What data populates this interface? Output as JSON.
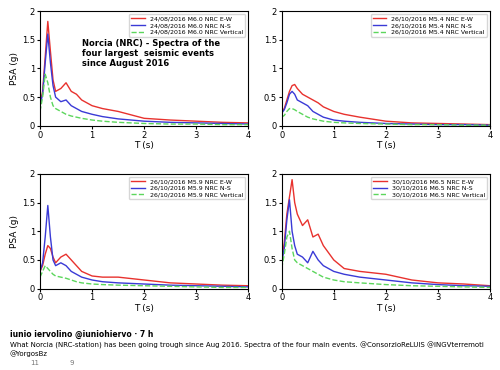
{
  "chart_data": [
    {
      "type": "line",
      "annotation": "Norcia (NRC) - Spectra of the\nfour largest  seismic events\nsince August 2016",
      "xlabel": "T (s)",
      "ylabel": "PSA (g)",
      "xlim": [
        0,
        4
      ],
      "xticks": [
        0,
        1,
        2,
        3,
        4
      ],
      "ylim": [
        0,
        2
      ],
      "yticks": [
        0,
        0.5,
        1,
        1.5,
        2
      ],
      "legend": "upper right",
      "x": [
        0,
        0.05,
        0.1,
        0.15,
        0.2,
        0.25,
        0.3,
        0.4,
        0.5,
        0.6,
        0.7,
        0.8,
        1.0,
        1.2,
        1.5,
        2.0,
        2.5,
        3.0,
        3.5,
        4.0
      ],
      "series": [
        {
          "name": "24/08/2016 M6.0 NRC E-W",
          "color": "#e8322e",
          "line_style": "solid",
          "values": [
            0.37,
            0.6,
            1.2,
            1.82,
            1.3,
            0.8,
            0.6,
            0.65,
            0.75,
            0.6,
            0.55,
            0.45,
            0.35,
            0.3,
            0.25,
            0.13,
            0.1,
            0.08,
            0.06,
            0.05
          ]
        },
        {
          "name": "24/08/2016 M6.0 NRC N-S",
          "color": "#3a3ad6",
          "line_style": "solid",
          "values": [
            0.35,
            0.55,
            1.1,
            1.6,
            1.1,
            0.7,
            0.5,
            0.42,
            0.45,
            0.35,
            0.3,
            0.25,
            0.2,
            0.16,
            0.12,
            0.08,
            0.06,
            0.05,
            0.04,
            0.03
          ]
        },
        {
          "name": "24/08/2016 M6.0 NRC Vertical",
          "color": "#5cd65c",
          "line_style": "dashed",
          "values": [
            0.25,
            0.5,
            0.9,
            0.75,
            0.5,
            0.35,
            0.3,
            0.25,
            0.2,
            0.17,
            0.15,
            0.13,
            0.1,
            0.08,
            0.06,
            0.04,
            0.03,
            0.03,
            0.02,
            0.02
          ]
        }
      ]
    },
    {
      "type": "line",
      "xlabel": "T (s)",
      "xlim": [
        0,
        4
      ],
      "xticks": [
        0,
        1,
        2,
        3,
        4
      ],
      "ylim": [
        0,
        2
      ],
      "yticks": [
        0,
        0.5,
        1,
        1.5,
        2
      ],
      "legend": "upper right",
      "x": [
        0,
        0.05,
        0.1,
        0.15,
        0.2,
        0.25,
        0.3,
        0.4,
        0.5,
        0.6,
        0.7,
        0.8,
        1.0,
        1.2,
        1.5,
        2.0,
        2.5,
        3.0,
        3.5,
        4.0
      ],
      "series": [
        {
          "name": "26/10/2016 M5.4 NRC E-W",
          "color": "#e8322e",
          "line_style": "solid",
          "values": [
            0.25,
            0.3,
            0.45,
            0.6,
            0.7,
            0.72,
            0.65,
            0.55,
            0.5,
            0.45,
            0.4,
            0.33,
            0.25,
            0.2,
            0.15,
            0.08,
            0.05,
            0.04,
            0.03,
            0.02
          ]
        },
        {
          "name": "26/10/2016 M5.4 NRC N-S",
          "color": "#3a3ad6",
          "line_style": "solid",
          "values": [
            0.22,
            0.28,
            0.4,
            0.55,
            0.6,
            0.55,
            0.45,
            0.4,
            0.35,
            0.25,
            0.2,
            0.15,
            0.1,
            0.08,
            0.06,
            0.04,
            0.03,
            0.02,
            0.02,
            0.01
          ]
        },
        {
          "name": "26/10/2016 M5.4 NRC Vertical",
          "color": "#5cd65c",
          "line_style": "dashed",
          "values": [
            0.15,
            0.18,
            0.25,
            0.3,
            0.3,
            0.28,
            0.25,
            0.2,
            0.15,
            0.12,
            0.1,
            0.08,
            0.06,
            0.05,
            0.04,
            0.03,
            0.02,
            0.02,
            0.01,
            0.01
          ]
        }
      ]
    },
    {
      "type": "line",
      "xlabel": "T (s)",
      "ylabel": "PSA (g)",
      "xlim": [
        0,
        4
      ],
      "xticks": [
        0,
        1,
        2,
        3,
        4
      ],
      "ylim": [
        0,
        2
      ],
      "yticks": [
        0,
        0.5,
        1,
        1.5,
        2
      ],
      "legend": "upper right",
      "x": [
        0,
        0.05,
        0.1,
        0.15,
        0.2,
        0.25,
        0.3,
        0.4,
        0.5,
        0.6,
        0.7,
        0.8,
        1.0,
        1.2,
        1.5,
        2.0,
        2.5,
        3.0,
        3.5,
        4.0
      ],
      "series": [
        {
          "name": "26/10/2016 M5.9 NRC E-W",
          "color": "#e8322e",
          "line_style": "solid",
          "values": [
            0.3,
            0.4,
            0.6,
            0.75,
            0.7,
            0.55,
            0.45,
            0.55,
            0.6,
            0.5,
            0.4,
            0.3,
            0.22,
            0.2,
            0.2,
            0.15,
            0.1,
            0.08,
            0.06,
            0.05
          ]
        },
        {
          "name": "26/10/2016 M5.9 NRC N-S",
          "color": "#3a3ad6",
          "line_style": "solid",
          "values": [
            0.3,
            0.45,
            0.9,
            1.45,
            0.9,
            0.5,
            0.4,
            0.45,
            0.4,
            0.3,
            0.25,
            0.2,
            0.15,
            0.12,
            0.1,
            0.08,
            0.06,
            0.05,
            0.04,
            0.03
          ]
        },
        {
          "name": "26/10/2016 M5.9 NRC Vertical",
          "color": "#5cd65c",
          "line_style": "dashed",
          "values": [
            0.2,
            0.3,
            0.4,
            0.35,
            0.3,
            0.25,
            0.22,
            0.2,
            0.18,
            0.15,
            0.12,
            0.1,
            0.08,
            0.07,
            0.06,
            0.05,
            0.04,
            0.03,
            0.02,
            0.02
          ]
        }
      ]
    },
    {
      "type": "line",
      "xlabel": "T (s)",
      "xlim": [
        0,
        4
      ],
      "xticks": [
        0,
        1,
        2,
        3,
        4
      ],
      "ylim": [
        0,
        2
      ],
      "yticks": [
        0,
        0.5,
        1,
        1.5,
        2
      ],
      "legend": "upper right",
      "x": [
        0,
        0.05,
        0.1,
        0.15,
        0.2,
        0.25,
        0.3,
        0.4,
        0.5,
        0.6,
        0.7,
        0.8,
        1.0,
        1.2,
        1.5,
        2.0,
        2.5,
        3.0,
        3.5,
        4.0
      ],
      "series": [
        {
          "name": "30/10/2016 M6.5 NRC E-W",
          "color": "#e8322e",
          "line_style": "solid",
          "values": [
            0.5,
            0.8,
            1.3,
            1.6,
            1.9,
            1.5,
            1.3,
            1.1,
            1.2,
            0.9,
            0.95,
            0.75,
            0.5,
            0.35,
            0.3,
            0.25,
            0.15,
            0.1,
            0.08,
            0.05
          ]
        },
        {
          "name": "30/10/2016 M6.5 NRC N-S",
          "color": "#3a3ad6",
          "line_style": "solid",
          "values": [
            0.45,
            0.7,
            1.2,
            1.55,
            1.0,
            0.75,
            0.6,
            0.55,
            0.45,
            0.65,
            0.5,
            0.4,
            0.3,
            0.25,
            0.2,
            0.15,
            0.1,
            0.07,
            0.05,
            0.04
          ]
        },
        {
          "name": "30/10/2016 M6.5 NRC Vertical",
          "color": "#5cd65c",
          "line_style": "dashed",
          "values": [
            0.35,
            0.6,
            0.9,
            1.0,
            0.7,
            0.5,
            0.45,
            0.4,
            0.35,
            0.3,
            0.25,
            0.2,
            0.15,
            0.12,
            0.1,
            0.07,
            0.05,
            0.04,
            0.03,
            0.02
          ]
        }
      ]
    }
  ],
  "tweet": {
    "byline": "iunio iervolino @iuniohiervo · 7 h",
    "text": "What Norcia (NRC-station) has been going trough since Aug 2016. Spectra of the four main events. @ConsorzioReLUIS @INGVterremoti @YorgosBz",
    "retweets": 11,
    "likes": 9
  }
}
